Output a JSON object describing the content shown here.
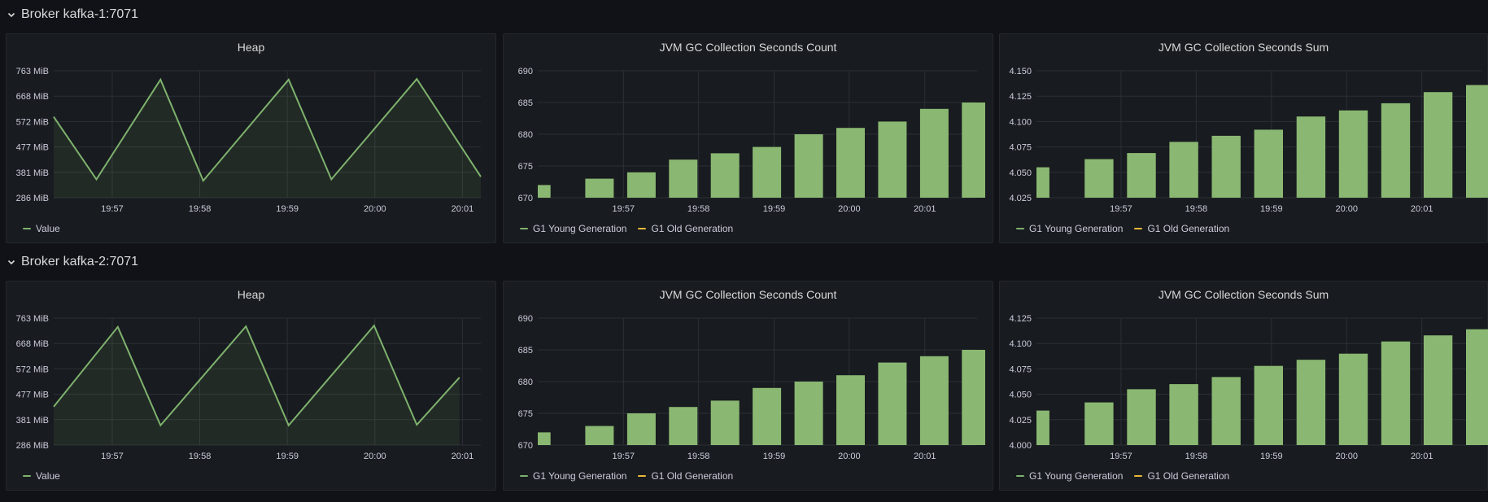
{
  "colors": {
    "green": "#7eb26d",
    "bar_fill": "#8ab872",
    "orange": "#eab839",
    "grid": "#2c3036",
    "panel_bg": "#181b1f"
  },
  "rows": [
    {
      "title": "Broker kafka-1:7071",
      "chevron_icon": "chevron-down-icon",
      "panels": {
        "heap": {
          "title": "Heap",
          "legend": [
            "Value"
          ]
        },
        "gc_count": {
          "title": "JVM GC Collection Seconds Count",
          "legend": [
            "G1 Young Generation",
            "G1 Old Generation"
          ]
        },
        "gc_sum": {
          "title": "JVM GC Collection Seconds Sum",
          "legend": [
            "G1 Young Generation",
            "G1 Old Generation"
          ]
        }
      }
    },
    {
      "title": "Broker kafka-2:7071",
      "chevron_icon": "chevron-down-icon",
      "panels": {
        "heap": {
          "title": "Heap",
          "legend": [
            "Value"
          ]
        },
        "gc_count": {
          "title": "JVM GC Collection Seconds Count",
          "legend": [
            "G1 Young Generation",
            "G1 Old Generation"
          ]
        },
        "gc_sum": {
          "title": "JVM GC Collection Seconds Sum",
          "legend": [
            "G1 Young Generation",
            "G1 Old Generation"
          ]
        }
      }
    }
  ],
  "chart_data": [
    {
      "id": "k1-heap",
      "type": "area",
      "title": "Heap",
      "x_ticks": [
        "19:57",
        "19:58",
        "19:59",
        "20:00",
        "20:01"
      ],
      "y_ticks": [
        "286 MiB",
        "381 MiB",
        "477 MiB",
        "572 MiB",
        "668 MiB",
        "763 MiB"
      ],
      "ylim": [
        286,
        763
      ],
      "xlim": [
        "19:56:15",
        "20:01:15"
      ],
      "series": [
        {
          "name": "Value",
          "x": [
            "19:56:15",
            "19:56:45",
            "19:57:30",
            "19:58:00",
            "19:59:00",
            "19:59:30",
            "20:00:30",
            "20:01:15"
          ],
          "values": [
            590,
            355,
            730,
            350,
            730,
            355,
            732,
            365
          ]
        }
      ]
    },
    {
      "id": "k1-gc-count",
      "type": "bar",
      "title": "JVM GC Collection Seconds Count",
      "x_ticks": [
        "19:57",
        "19:58",
        "19:59",
        "20:00",
        "20:01"
      ],
      "y_ticks": [
        "670",
        "675",
        "680",
        "685",
        "690"
      ],
      "ylim": [
        670,
        690
      ],
      "series": [
        {
          "name": "G1 Young Generation",
          "values": [
            672,
            673,
            674,
            676,
            677,
            678,
            680,
            681,
            682,
            684,
            685
          ]
        },
        {
          "name": "G1 Old Generation",
          "values": []
        }
      ]
    },
    {
      "id": "k1-gc-sum",
      "type": "bar",
      "title": "JVM GC Collection Seconds Sum",
      "x_ticks": [
        "19:57",
        "19:58",
        "19:59",
        "20:00",
        "20:01"
      ],
      "y_ticks": [
        "4.025",
        "4.050",
        "4.075",
        "4.100",
        "4.125",
        "4.150"
      ],
      "ylim": [
        4.025,
        4.15
      ],
      "series": [
        {
          "name": "G1 Young Generation",
          "values": [
            4.055,
            4.063,
            4.069,
            4.08,
            4.086,
            4.092,
            4.105,
            4.111,
            4.118,
            4.129,
            4.136
          ]
        },
        {
          "name": "G1 Old Generation",
          "values": []
        }
      ]
    },
    {
      "id": "k2-heap",
      "type": "area",
      "title": "Heap",
      "x_ticks": [
        "19:57",
        "19:58",
        "19:59",
        "20:00",
        "20:01"
      ],
      "y_ticks": [
        "286 MiB",
        "381 MiB",
        "477 MiB",
        "572 MiB",
        "668 MiB",
        "763 MiB"
      ],
      "ylim": [
        286,
        763
      ],
      "xlim": [
        "19:56:15",
        "20:01:15"
      ],
      "series": [
        {
          "name": "Value",
          "x": [
            "19:56:15",
            "19:57:00",
            "19:57:30",
            "19:58:30",
            "19:59:00",
            "20:00:00",
            "20:00:30",
            "20:01:00"
          ],
          "values": [
            430,
            730,
            360,
            732,
            360,
            735,
            362,
            540
          ]
        }
      ]
    },
    {
      "id": "k2-gc-count",
      "type": "bar",
      "title": "JVM GC Collection Seconds Count",
      "x_ticks": [
        "19:57",
        "19:58",
        "19:59",
        "20:00",
        "20:01"
      ],
      "y_ticks": [
        "670",
        "675",
        "680",
        "685",
        "690"
      ],
      "ylim": [
        670,
        690
      ],
      "series": [
        {
          "name": "G1 Young Generation",
          "values": [
            672,
            673,
            675,
            676,
            677,
            679,
            680,
            681,
            683,
            684,
            685
          ]
        },
        {
          "name": "G1 Old Generation",
          "values": []
        }
      ]
    },
    {
      "id": "k2-gc-sum",
      "type": "bar",
      "title": "JVM GC Collection Seconds Sum",
      "x_ticks": [
        "19:57",
        "19:58",
        "19:59",
        "20:00",
        "20:01"
      ],
      "y_ticks": [
        "4.000",
        "4.025",
        "4.050",
        "4.075",
        "4.100",
        "4.125"
      ],
      "ylim": [
        4.0,
        4.125
      ],
      "series": [
        {
          "name": "G1 Young Generation",
          "values": [
            4.034,
            4.042,
            4.055,
            4.06,
            4.067,
            4.078,
            4.084,
            4.09,
            4.102,
            4.108,
            4.114
          ]
        },
        {
          "name": "G1 Old Generation",
          "values": []
        }
      ]
    }
  ]
}
